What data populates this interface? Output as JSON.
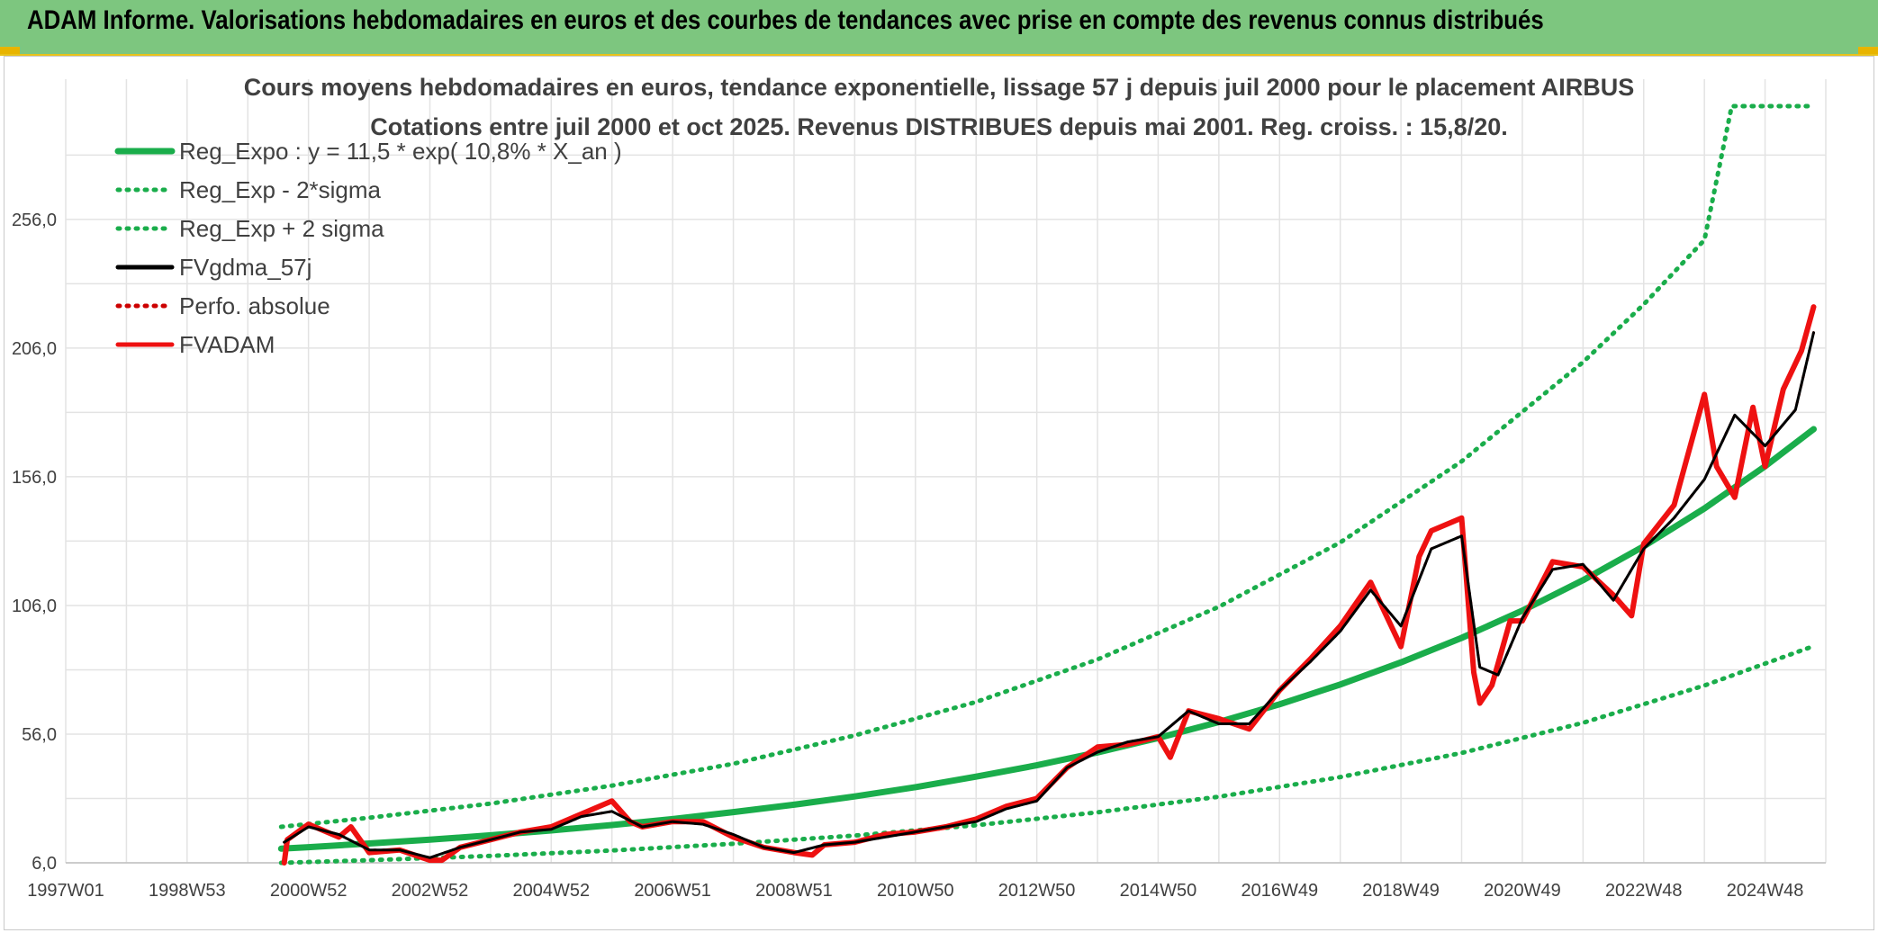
{
  "header": {
    "title": "ADAM Informe. Valorisations hebdomadaires en euros et des courbes de tendances avec prise en compte des revenus connus distribués"
  },
  "chart_data": {
    "type": "line",
    "title": "Cours moyens hebdomadaires en euros, tendance exponentielle, lissage 57 j depuis juil 2000 pour le placement AIRBUS",
    "subtitle": "Cotations entre juil 2000 et oct 2025. Revenus DISTRIBUES depuis mai 2001. Reg. croiss. : 15,8/20.",
    "x_tick_labels": [
      "1997W01",
      "1998W53",
      "2000W52",
      "2002W52",
      "2004W52",
      "2006W51",
      "2008W51",
      "2010W50",
      "2012W50",
      "2014W50",
      "2016W49",
      "2018W49",
      "2020W49",
      "2022W48",
      "2024W48"
    ],
    "x_tick_years": [
      1997.0,
      1999.0,
      2001.0,
      2003.0,
      2005.0,
      2007.0,
      2009.0,
      2011.0,
      2013.0,
      2015.0,
      2017.0,
      2019.0,
      2021.0,
      2023.0,
      2025.0
    ],
    "xlim": [
      1997.0,
      2026.0
    ],
    "y_tick_labels": [
      "6,0",
      "56,0",
      "106,0",
      "156,0",
      "206,0",
      "256,0"
    ],
    "y_ticks": [
      6,
      56,
      106,
      156,
      206,
      256
    ],
    "ylim": [
      6,
      300
    ],
    "grid": true,
    "legend_position": "top-left",
    "series": [
      {
        "name": "Reg_Expo : y = 11,5 * exp( 10,8% *  X_an )",
        "style": "solid",
        "color": "#1aad4b",
        "x": [
          2000.55,
          2001,
          2002,
          2003,
          2004,
          2005,
          2006,
          2007,
          2008,
          2009,
          2010,
          2011,
          2012,
          2013,
          2014,
          2015,
          2016,
          2017,
          2018,
          2019,
          2020,
          2021,
          2022,
          2023,
          2024,
          2025,
          2025.8
        ],
        "y": [
          11.5,
          12.1,
          13.5,
          15.0,
          16.7,
          18.6,
          20.7,
          23.0,
          25.7,
          28.6,
          31.8,
          35.4,
          39.5,
          43.9,
          48.9,
          54.5,
          60.7,
          67.6,
          75.3,
          83.9,
          93.4,
          104.0,
          115.8,
          129.0,
          143.7,
          160.1,
          174.5
        ]
      },
      {
        "name": "Reg_Exp - 2*sigma",
        "style": "dotted",
        "color": "#1aad4b",
        "x": [
          2000.55,
          2002,
          2004,
          2006,
          2008,
          2010,
          2012,
          2014,
          2016,
          2018,
          2020,
          2022,
          2024,
          2025.8
        ],
        "y": [
          6.0,
          7.0,
          8.7,
          10.8,
          13.4,
          16.6,
          20.6,
          25.6,
          31.7,
          39.3,
          48.7,
          60.4,
          74.9,
          90.2
        ]
      },
      {
        "name": "Reg_Exp + 2 sigma",
        "style": "dotted",
        "color": "#1aad4b",
        "x": [
          2000.55,
          2002,
          2004,
          2006,
          2008,
          2010,
          2012,
          2014,
          2016,
          2018,
          2020,
          2022,
          2023,
          2024,
          2024.45,
          2025.8
        ],
        "y": [
          20.0,
          23.5,
          29.0,
          36.0,
          44.5,
          55.5,
          68.5,
          85.0,
          105.5,
          130.5,
          162.0,
          200.5,
          223.0,
          248.0,
          300.0,
          300.0
        ]
      },
      {
        "name": "FVgdma_57j",
        "style": "solid",
        "color": "#000000",
        "x": [
          2000.6,
          2001.0,
          2001.5,
          2002.0,
          2002.5,
          2003.0,
          2003.5,
          2004.0,
          2004.5,
          2005.0,
          2005.5,
          2006.0,
          2006.5,
          2007.0,
          2007.5,
          2008.0,
          2008.5,
          2009.0,
          2009.5,
          2010.0,
          2010.5,
          2011.0,
          2011.5,
          2012.0,
          2012.5,
          2013.0,
          2013.5,
          2014.0,
          2014.5,
          2015.0,
          2015.5,
          2016.0,
          2016.5,
          2017.0,
          2017.5,
          2018.0,
          2018.5,
          2019.0,
          2019.5,
          2020.0,
          2020.3,
          2020.6,
          2021.0,
          2021.5,
          2022.0,
          2022.5,
          2023.0,
          2023.5,
          2024.0,
          2024.5,
          2025.0,
          2025.5,
          2025.8
        ],
        "y": [
          14,
          20,
          17,
          11,
          11,
          8,
          12,
          15,
          18,
          19,
          24,
          26,
          20,
          22,
          21,
          17,
          12,
          10,
          13,
          14,
          16,
          18,
          20,
          22,
          27,
          30,
          43,
          49,
          53,
          55,
          65,
          60,
          60,
          73,
          84,
          96,
          112,
          98,
          128,
          133,
          82,
          79,
          101,
          120,
          122,
          108,
          128,
          140,
          155,
          180,
          168,
          182,
          212
        ]
      },
      {
        "name": "Perfo. absolue",
        "style": "dotted",
        "color": "#cc0000",
        "x": [
          2000.6,
          2001.0,
          2001.5,
          2002.0,
          2002.5,
          2003.0,
          2003.5,
          2004.0,
          2004.5,
          2005.0,
          2005.5,
          2006.0,
          2006.5,
          2007.0,
          2007.5,
          2008.0,
          2008.5,
          2009.0,
          2009.5,
          2010.0,
          2010.5,
          2011.0,
          2011.5,
          2012.0,
          2012.5,
          2013.0,
          2013.5,
          2014.0,
          2014.5,
          2015.0,
          2015.5,
          2016.0,
          2016.5,
          2017.0,
          2017.5,
          2018.0,
          2018.5,
          2019.0,
          2019.5,
          2020.0,
          2020.3,
          2020.6,
          2021.0,
          2021.5,
          2022.0,
          2022.5,
          2023.0,
          2023.5,
          2024.0,
          2024.5,
          2025.0,
          2025.5,
          2025.8
        ],
        "y": [
          14,
          20,
          17,
          11,
          11,
          8,
          12,
          15,
          18,
          19,
          24,
          26,
          20,
          22,
          21,
          17,
          12,
          10,
          13,
          14,
          16,
          18,
          20,
          22,
          27,
          30,
          43,
          49,
          53,
          55,
          65,
          60,
          60,
          73,
          84,
          96,
          112,
          98,
          128,
          133,
          82,
          79,
          101,
          120,
          122,
          108,
          128,
          140,
          155,
          180,
          168,
          182,
          212
        ]
      },
      {
        "name": "FVADAM",
        "style": "solid",
        "color": "#ee1111",
        "x": [
          2000.6,
          2000.65,
          2001.0,
          2001.5,
          2001.7,
          2002.0,
          2002.5,
          2003.0,
          2003.2,
          2003.5,
          2004.0,
          2004.5,
          2005.0,
          2005.5,
          2006.0,
          2006.3,
          2006.5,
          2007.0,
          2007.5,
          2008.0,
          2008.5,
          2009.0,
          2009.3,
          2009.5,
          2010.0,
          2010.5,
          2011.0,
          2011.5,
          2012.0,
          2012.5,
          2013.0,
          2013.5,
          2014.0,
          2014.5,
          2015.0,
          2015.2,
          2015.5,
          2016.0,
          2016.5,
          2017.0,
          2017.5,
          2018.0,
          2018.5,
          2019.0,
          2019.3,
          2019.5,
          2020.0,
          2020.2,
          2020.3,
          2020.5,
          2020.8,
          2021.0,
          2021.5,
          2022.0,
          2022.5,
          2022.8,
          2023.0,
          2023.5,
          2024.0,
          2024.2,
          2024.5,
          2024.8,
          2025.0,
          2025.3,
          2025.6,
          2025.8
        ],
        "y": [
          6,
          15,
          21,
          16,
          20,
          10,
          11,
          7,
          7,
          12,
          15,
          18,
          20,
          25,
          30,
          22,
          20,
          22,
          22,
          16,
          12,
          10,
          9,
          13,
          14,
          17,
          18,
          20,
          23,
          28,
          31,
          43,
          51,
          52,
          55,
          47,
          65,
          62,
          58,
          73,
          85,
          98,
          115,
          90,
          125,
          135,
          140,
          80,
          68,
          75,
          100,
          100,
          123,
          121,
          110,
          102,
          130,
          145,
          188,
          160,
          148,
          183,
          160,
          190,
          205,
          222
        ]
      }
    ]
  }
}
